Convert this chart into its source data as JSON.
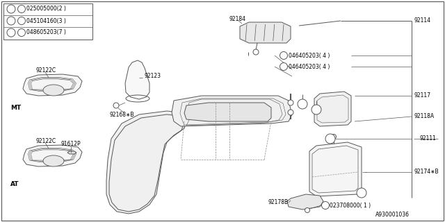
{
  "bg_color": "#ffffff",
  "line_color": "#555555",
  "text_color": "#000000",
  "legend": [
    {
      "num": "1",
      "prefix": "N",
      "code": "025005000(2 )"
    },
    {
      "num": "2",
      "prefix": "S",
      "code": "045104160(3 )"
    },
    {
      "num": "3",
      "prefix": "S",
      "code": "048605203(7 )"
    }
  ],
  "figsize": [
    6.4,
    3.2
  ],
  "dpi": 100
}
